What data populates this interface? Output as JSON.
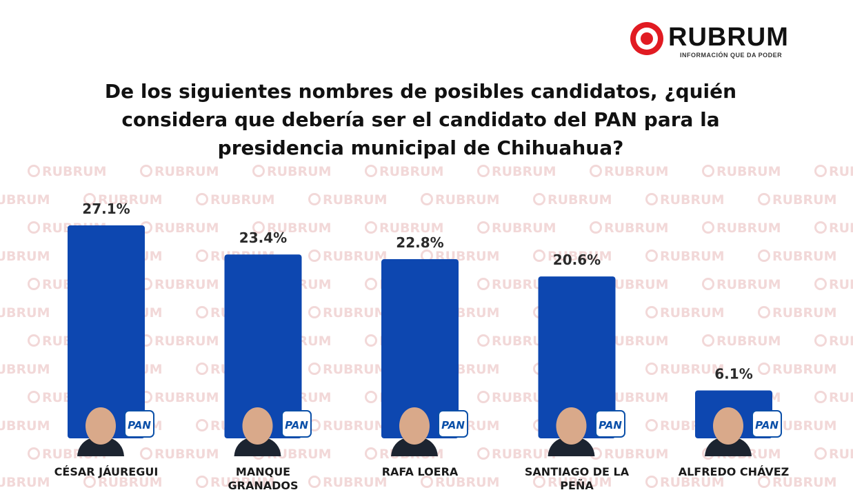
{
  "logo": {
    "name": "RUBRUM",
    "tagline": "INFORMACIÓN QUE DA PODER"
  },
  "title": "De los siguientes nombres de posibles candidatos, ¿quién considera que debería ser el candidato del PAN para la presidencia municipal de Chihuahua?",
  "watermark": {
    "word": "RUBRUM"
  },
  "party_badge": "PAN",
  "colors": {
    "bar": "#0d47b0",
    "badge_blue": "#0a4fa8",
    "brand_red": "#e11b22"
  },
  "chart_data": {
    "type": "bar",
    "categories": [
      "CÉSAR JÁUREGUI",
      "MANQUE GRANADOS",
      "RAFA LOERA",
      "SANTIAGO DE LA PEÑA",
      "ALFREDO CHÁVEZ"
    ],
    "category_lines": [
      [
        "CÉSAR JÁUREGUI"
      ],
      [
        "MANQUE",
        "GRANADOS"
      ],
      [
        "RAFA LOERA"
      ],
      [
        "SANTIAGO DE LA",
        "PEÑA"
      ],
      [
        "ALFREDO CHÁVEZ"
      ]
    ],
    "values": [
      27.1,
      23.4,
      22.8,
      20.6,
      6.1
    ],
    "value_labels": [
      "27.1%",
      "23.4%",
      "22.8%",
      "20.6%",
      "6.1%"
    ],
    "unit": "%",
    "ylim": [
      0,
      27.1
    ],
    "grid": false,
    "legend": "none"
  }
}
